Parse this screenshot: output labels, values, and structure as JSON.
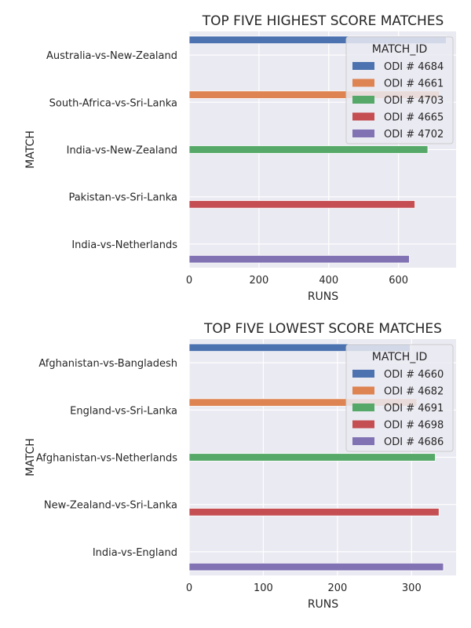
{
  "chart_data": [
    {
      "type": "bar",
      "orientation": "horizontal",
      "title": "TOP FIVE HIGHEST SCORE MATCHES",
      "xlabel": "RUNS",
      "ylabel": "MATCH",
      "xlim": [
        0,
        765
      ],
      "xticks": [
        0,
        200,
        400,
        600
      ],
      "grid": true,
      "legend_title": "MATCH_ID",
      "legend_position": "top-right",
      "categories": [
        "Australia-vs-New-Zealand",
        "South-Africa-vs-Sri-Lanka",
        "India-vs-New-Zealand",
        "Pakistan-vs-Sri-Lanka",
        "India-vs-Netherlands"
      ],
      "series": [
        {
          "name": "ODI # 4684",
          "color": "#4c72b0",
          "values": [
            737,
            null,
            null,
            null,
            null
          ]
        },
        {
          "name": "ODI # 4661",
          "color": "#dd8452",
          "values": [
            null,
            717,
            null,
            null,
            null
          ]
        },
        {
          "name": "ODI # 4703",
          "color": "#55a868",
          "values": [
            null,
            null,
            684,
            null,
            null
          ]
        },
        {
          "name": "ODI # 4665",
          "color": "#c44e52",
          "values": [
            null,
            null,
            null,
            647,
            null
          ]
        },
        {
          "name": "ODI # 4702",
          "color": "#8172b3",
          "values": [
            null,
            null,
            null,
            null,
            631
          ]
        }
      ]
    },
    {
      "type": "bar",
      "orientation": "horizontal",
      "title": "TOP FIVE LOWEST SCORE MATCHES",
      "xlabel": "RUNS",
      "ylabel": "MATCH",
      "xlim": [
        0,
        360
      ],
      "xticks": [
        0,
        100,
        200,
        300
      ],
      "grid": true,
      "legend_title": "MATCH_ID",
      "legend_position": "top-right",
      "categories": [
        "Afghanistan-vs-Bangladesh",
        "England-vs-Sri-Lanka",
        "Afghanistan-vs-Netherlands",
        "New-Zealand-vs-Sri-Lanka",
        "India-vs-England"
      ],
      "series": [
        {
          "name": "ODI # 4660",
          "color": "#4c72b0",
          "values": [
            298,
            null,
            null,
            null,
            null
          ]
        },
        {
          "name": "ODI # 4682",
          "color": "#dd8452",
          "values": [
            null,
            307,
            null,
            null,
            null
          ]
        },
        {
          "name": "ODI # 4691",
          "color": "#55a868",
          "values": [
            null,
            null,
            332,
            null,
            null
          ]
        },
        {
          "name": "ODI # 4698",
          "color": "#c44e52",
          "values": [
            null,
            null,
            null,
            337,
            null
          ]
        },
        {
          "name": "ODI # 4686",
          "color": "#8172b3",
          "values": [
            null,
            null,
            null,
            null,
            343
          ]
        }
      ]
    }
  ]
}
